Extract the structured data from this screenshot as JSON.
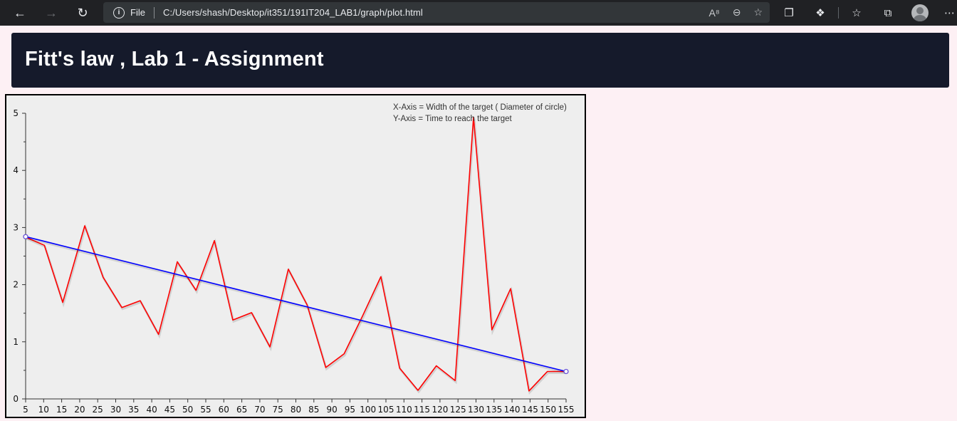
{
  "browser": {
    "back_icon": "back-arrow-icon",
    "forward_icon": "forward-arrow-icon",
    "reload_icon": "reload-icon",
    "protocol_label": "File",
    "url": "C:/Users/shash/Desktop/it351/191IT204_LAB1/graph/plot.html"
  },
  "page": {
    "title": "Fitt's law , Lab 1 - Assignment"
  },
  "chart_data": {
    "type": "line",
    "annotations": [
      "X-Axis = Width of the target ( Diameter of circle)",
      "Y-Axis = Time to reach the target"
    ],
    "xlim": [
      5,
      155
    ],
    "ylim": [
      0,
      5
    ],
    "x_ticks": [
      5,
      10,
      15,
      20,
      25,
      30,
      35,
      40,
      45,
      50,
      55,
      60,
      65,
      70,
      75,
      80,
      85,
      90,
      95,
      100,
      105,
      110,
      115,
      120,
      125,
      130,
      135,
      140,
      145,
      150,
      155
    ],
    "y_ticks": [
      0,
      1,
      2,
      3,
      4,
      5
    ],
    "grid": false,
    "series": [
      {
        "color": "#ff0000",
        "points": [
          [
            5,
            2.83
          ],
          [
            10.2,
            2.69
          ],
          [
            15.3,
            1.69
          ],
          [
            21.4,
            3.03
          ],
          [
            26.5,
            2.13
          ],
          [
            31.7,
            1.6
          ],
          [
            36.8,
            1.72
          ],
          [
            41.9,
            1.13
          ],
          [
            47.1,
            2.4
          ],
          [
            52.3,
            1.9
          ],
          [
            57.4,
            2.77
          ],
          [
            62.5,
            1.38
          ],
          [
            67.7,
            1.51
          ],
          [
            72.8,
            0.91
          ],
          [
            77.9,
            2.27
          ],
          [
            83.1,
            1.65
          ],
          [
            88.3,
            0.55
          ],
          [
            93.4,
            0.79
          ],
          [
            98.5,
            1.45
          ],
          [
            103.6,
            2.14
          ],
          [
            108.8,
            0.54
          ],
          [
            113.9,
            0.15
          ],
          [
            119.0,
            0.58
          ],
          [
            124.2,
            0.32
          ],
          [
            129.3,
            4.93
          ],
          [
            134.4,
            1.21
          ],
          [
            139.6,
            1.93
          ],
          [
            144.7,
            0.14
          ],
          [
            149.8,
            0.48
          ],
          [
            155,
            0.48
          ]
        ]
      },
      {
        "color": "#0000ff",
        "points": [
          [
            5,
            2.84
          ],
          [
            155,
            0.48
          ]
        ]
      }
    ]
  }
}
